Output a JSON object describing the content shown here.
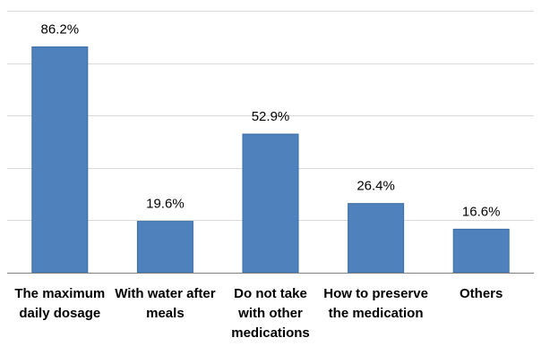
{
  "chart_data": {
    "type": "bar",
    "title": "",
    "xlabel": "",
    "ylabel": "",
    "ylim": [
      0,
      100
    ],
    "grid": true,
    "bar_color": "#4f81bd",
    "categories": [
      [
        "The maximum",
        "daily dosage"
      ],
      [
        "With water after",
        "meals"
      ],
      [
        "Do not take",
        "with other",
        "medications"
      ],
      [
        "How to preserve",
        "the medication"
      ],
      [
        "Others"
      ]
    ],
    "values": [
      86.2,
      19.6,
      52.9,
      26.4,
      16.6
    ],
    "data_labels": [
      "86.2%",
      "19.6%",
      "52.9%",
      "26.4%",
      "16.6%"
    ]
  }
}
